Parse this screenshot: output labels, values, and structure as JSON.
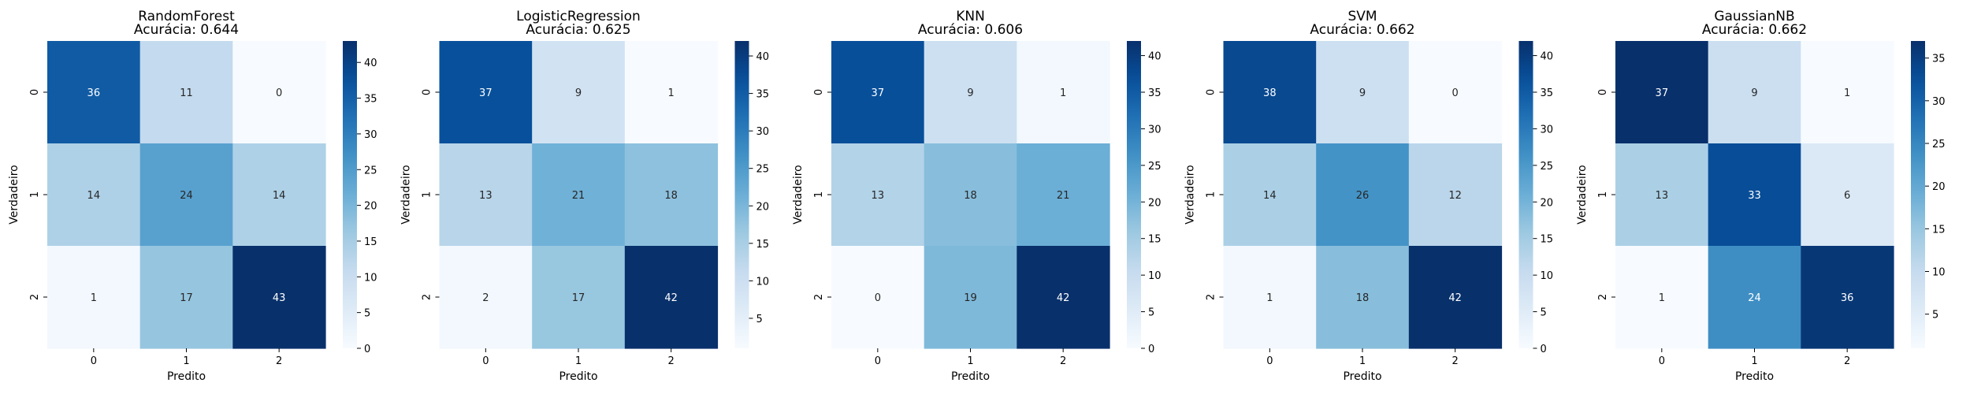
{
  "chart_data": [
    {
      "type": "heatmap",
      "title": "RandomForest",
      "subtitle": "Acurácia: 0.644",
      "xlabel": "Predito",
      "ylabel": "Verdadeiro",
      "x_categories": [
        "0",
        "1",
        "2"
      ],
      "y_categories": [
        "0",
        "1",
        "2"
      ],
      "values": [
        [
          36,
          11,
          0
        ],
        [
          14,
          24,
          14
        ],
        [
          1,
          17,
          43
        ]
      ],
      "colorbar": {
        "range": [
          0,
          43
        ],
        "ticks": [
          0,
          5,
          10,
          15,
          20,
          25,
          30,
          35,
          40
        ]
      },
      "colormap": "Blues"
    },
    {
      "type": "heatmap",
      "title": "LogisticRegression",
      "subtitle": "Acurácia: 0.625",
      "xlabel": "Predito",
      "ylabel": "Verdadeiro",
      "x_categories": [
        "0",
        "1",
        "2"
      ],
      "y_categories": [
        "0",
        "1",
        "2"
      ],
      "values": [
        [
          37,
          9,
          1
        ],
        [
          13,
          21,
          18
        ],
        [
          2,
          17,
          42
        ]
      ],
      "colorbar": {
        "range": [
          1,
          42
        ],
        "ticks": [
          5,
          10,
          15,
          20,
          25,
          30,
          35,
          40
        ]
      },
      "colormap": "Blues"
    },
    {
      "type": "heatmap",
      "title": "KNN",
      "subtitle": "Acurácia: 0.606",
      "xlabel": "Predito",
      "ylabel": "Verdadeiro",
      "x_categories": [
        "0",
        "1",
        "2"
      ],
      "y_categories": [
        "0",
        "1",
        "2"
      ],
      "values": [
        [
          37,
          9,
          1
        ],
        [
          13,
          18,
          21
        ],
        [
          0,
          19,
          42
        ]
      ],
      "colorbar": {
        "range": [
          0,
          42
        ],
        "ticks": [
          0,
          5,
          10,
          15,
          20,
          25,
          30,
          35,
          40
        ]
      },
      "colormap": "Blues"
    },
    {
      "type": "heatmap",
      "title": "SVM",
      "subtitle": "Acurácia: 0.662",
      "xlabel": "Predito",
      "ylabel": "Verdadeiro",
      "x_categories": [
        "0",
        "1",
        "2"
      ],
      "y_categories": [
        "0",
        "1",
        "2"
      ],
      "values": [
        [
          38,
          9,
          0
        ],
        [
          14,
          26,
          12
        ],
        [
          1,
          18,
          42
        ]
      ],
      "colorbar": {
        "range": [
          0,
          42
        ],
        "ticks": [
          0,
          5,
          10,
          15,
          20,
          25,
          30,
          35,
          40
        ]
      },
      "colormap": "Blues"
    },
    {
      "type": "heatmap",
      "title": "GaussianNB",
      "subtitle": "Acurácia: 0.662",
      "xlabel": "Predito",
      "ylabel": "Verdadeiro",
      "x_categories": [
        "0",
        "1",
        "2"
      ],
      "y_categories": [
        "0",
        "1",
        "2"
      ],
      "values": [
        [
          37,
          9,
          1
        ],
        [
          13,
          33,
          6
        ],
        [
          1,
          24,
          36
        ]
      ],
      "colorbar": {
        "range": [
          1,
          37
        ],
        "ticks": [
          5,
          10,
          15,
          20,
          25,
          30,
          35
        ]
      },
      "colormap": "Blues"
    }
  ]
}
